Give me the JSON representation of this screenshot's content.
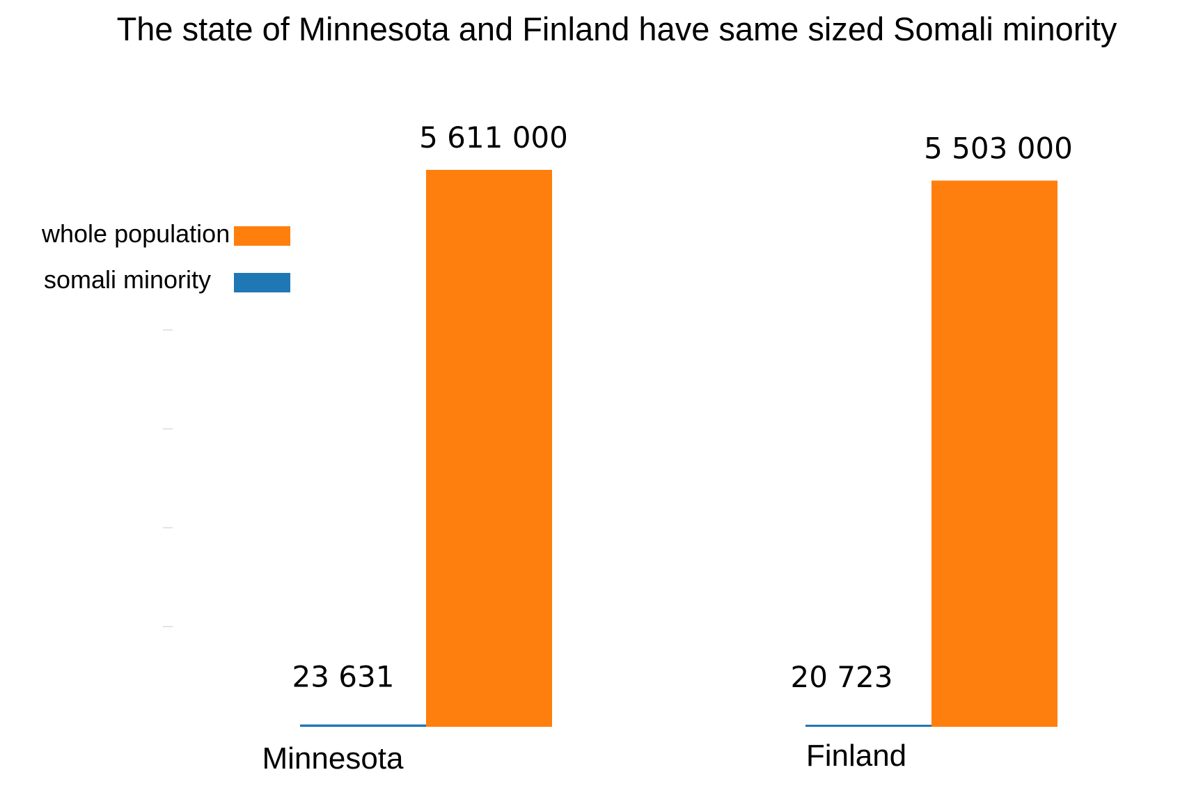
{
  "chart_data": {
    "type": "bar",
    "title": "The state of Minnesota and Finland have same sized Somali minority",
    "categories": [
      "Minnesota",
      "Finland"
    ],
    "series": [
      {
        "name": "somali minority",
        "color": "#1f77b4",
        "values": [
          23631,
          20723
        ],
        "labels": [
          "23 631",
          "20 723"
        ]
      },
      {
        "name": "whole population",
        "color": "#ff7f0e",
        "values": [
          5611000,
          5503000
        ],
        "labels": [
          "5 611 000",
          "5 503 000"
        ]
      }
    ],
    "legend": {
      "placement": "top-left",
      "order": [
        "whole population",
        "somali minority"
      ]
    },
    "ylim": [
      0,
      5611000
    ],
    "grid": false,
    "xlabel": "",
    "ylabel": ""
  }
}
